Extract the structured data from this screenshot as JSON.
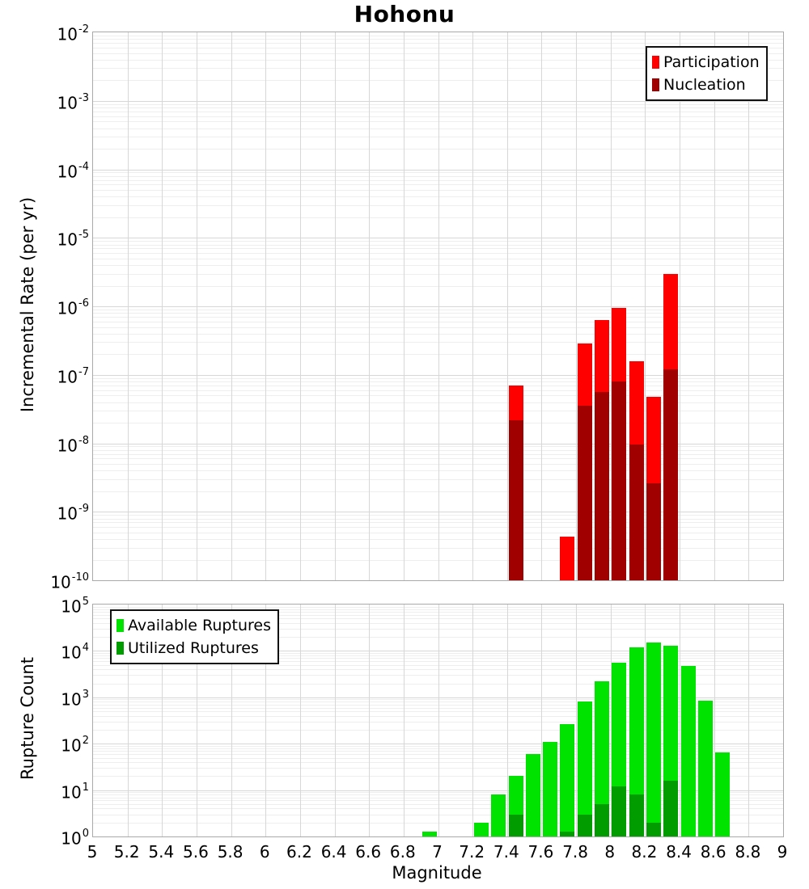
{
  "title": "Hohonu",
  "axes": {
    "x_label": "Magnitude",
    "x_ticks": [
      "5",
      "5.2",
      "5.4",
      "5.6",
      "5.8",
      "6",
      "6.2",
      "6.4",
      "6.6",
      "6.8",
      "7",
      "7.2",
      "7.4",
      "7.6",
      "7.8",
      "8",
      "8.2",
      "8.4",
      "8.6",
      "8.8",
      "9"
    ],
    "y_tick_base": "10",
    "top_y_label": "Incremental Rate (per yr)",
    "top_y_tick_exponents": [
      -2,
      -3,
      -4,
      -5,
      -6,
      -7,
      -8,
      -9,
      -10
    ],
    "bottom_y_label": "Rupture Count",
    "bottom_y_tick_exponents": [
      5,
      4,
      3,
      2,
      1,
      0
    ]
  },
  "colors": {
    "participation": "#ff0000",
    "nucleation": "#a00000",
    "available": "#00e200",
    "utilized": "#009c00",
    "major_grid": "#d7d7d7",
    "minor_grid": "#eeeeee",
    "frame": "#a9a9a9"
  },
  "chart_data": [
    {
      "type": "bar",
      "panel": "top",
      "title": "Hohonu",
      "xlabel": "Magnitude",
      "ylabel": "Incremental Rate (per yr)",
      "y_scale": "log",
      "ylim_exponents": [
        -10,
        -2
      ],
      "xlim": [
        5,
        9
      ],
      "bin_width": 0.1,
      "grid": true,
      "legend_position": "top-right",
      "categories": [
        7.45,
        7.75,
        7.85,
        7.95,
        8.05,
        8.15,
        8.25,
        8.35
      ],
      "series": [
        {
          "name": "Participation",
          "color": "#ff0000",
          "values": [
            7e-08,
            4.4e-10,
            2.9e-07,
            6.3e-07,
            9.5e-07,
            1.6e-07,
            4.8e-08,
            3e-06
          ]
        },
        {
          "name": "Nucleation",
          "color": "#a00000",
          "values": [
            2.2e-08,
            0,
            3.5e-08,
            5.6e-08,
            8.1e-08,
            9.7e-09,
            2.6e-09,
            1.2e-07
          ]
        }
      ]
    },
    {
      "type": "bar",
      "panel": "bottom",
      "xlabel": "Magnitude",
      "ylabel": "Rupture Count",
      "y_scale": "log",
      "ylim_exponents": [
        0,
        5
      ],
      "xlim": [
        5,
        9
      ],
      "bin_width": 0.1,
      "grid": true,
      "legend_position": "top-left",
      "categories": [
        6.95,
        7.25,
        7.35,
        7.45,
        7.55,
        7.65,
        7.75,
        7.85,
        7.95,
        8.05,
        8.15,
        8.25,
        8.35,
        8.45,
        8.55,
        8.65
      ],
      "series": [
        {
          "name": "Available Ruptures",
          "color": "#00e200",
          "values": [
            1,
            2,
            8,
            20,
            60,
            110,
            260,
            800,
            2200,
            5500,
            12000,
            15000,
            13000,
            4800,
            850,
            65
          ]
        },
        {
          "name": "Utilized Ruptures",
          "color": "#009c00",
          "values": [
            0,
            0,
            0,
            3,
            0,
            0,
            1,
            3,
            5,
            12,
            8,
            2,
            16,
            0,
            0,
            0
          ]
        }
      ]
    }
  ]
}
